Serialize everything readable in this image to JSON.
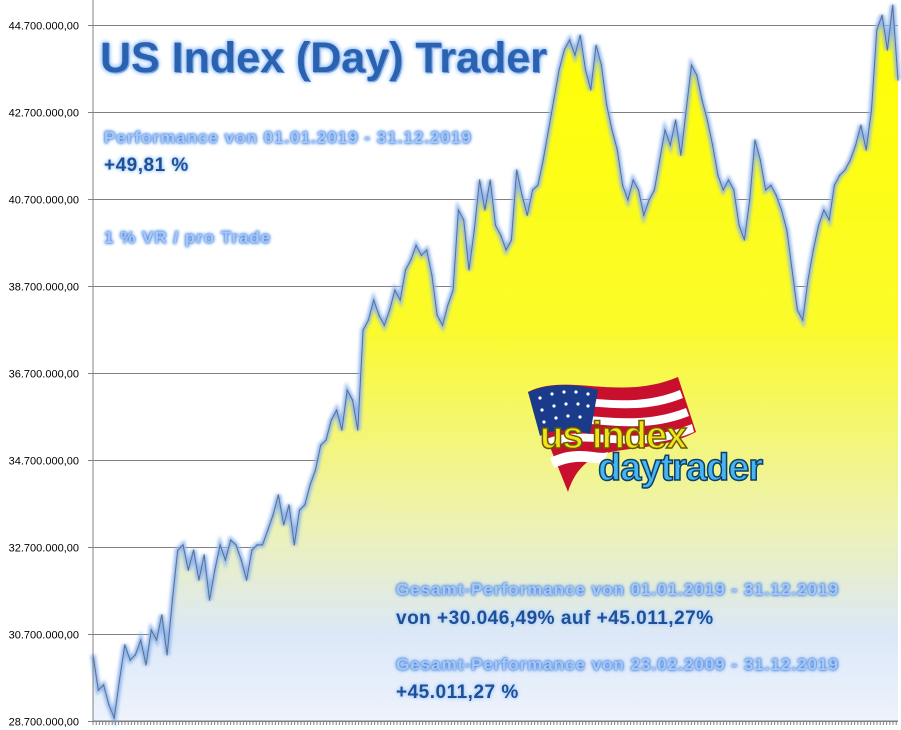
{
  "chart_data": {
    "type": "area",
    "title": "US Index (Day) Trader",
    "xlabel": "",
    "ylabel": "",
    "ylim": [
      28700000,
      45280000
    ],
    "yticks": [
      28700000,
      30700000,
      32700000,
      34700000,
      36700000,
      38700000,
      40700000,
      42700000,
      44700000
    ],
    "ytick_labels": [
      "28.700.000,00",
      "30.700.000,00",
      "32.700.000,00",
      "34.700.000,00",
      "36.700.000,00",
      "38.700.000,00",
      "40.700.000,00",
      "42.700.000,00",
      "44.700.000,00"
    ],
    "grid": "horizontal",
    "colors": {
      "line": "#7fa8e0",
      "fill_top": "#ffff00",
      "fill_bottom": "#e4ecfa",
      "grid": "#808080"
    },
    "values": [
      30220000,
      29410000,
      29530000,
      29070000,
      28770000,
      29640000,
      30450000,
      30100000,
      30220000,
      30560000,
      29990000,
      30790000,
      30560000,
      31140000,
      30220000,
      31480000,
      32630000,
      32750000,
      32170000,
      32630000,
      31940000,
      32520000,
      31480000,
      32170000,
      32750000,
      32400000,
      32860000,
      32750000,
      32400000,
      31940000,
      32630000,
      32750000,
      32750000,
      33090000,
      33440000,
      33900000,
      33210000,
      33670000,
      32750000,
      33550000,
      33670000,
      34130000,
      34470000,
      35040000,
      35160000,
      35620000,
      35850000,
      35390000,
      36310000,
      36080000,
      35390000,
      37690000,
      37920000,
      38380000,
      38030000,
      37800000,
      38150000,
      38610000,
      38380000,
      39070000,
      39300000,
      39640000,
      39410000,
      39530000,
      38950000,
      38030000,
      37800000,
      38260000,
      38610000,
      40450000,
      40220000,
      39070000,
      39990000,
      41140000,
      40450000,
      41140000,
      40100000,
      39870000,
      39530000,
      39760000,
      41370000,
      40790000,
      40330000,
      40910000,
      41020000,
      41600000,
      42290000,
      42980000,
      43670000,
      44130000,
      44360000,
      44010000,
      44470000,
      43670000,
      43210000,
      44240000,
      43780000,
      42860000,
      42290000,
      41830000,
      41020000,
      40680000,
      41140000,
      40910000,
      40330000,
      40680000,
      40910000,
      41600000,
      42290000,
      41940000,
      42520000,
      41710000,
      42750000,
      43780000,
      43550000,
      42980000,
      42520000,
      41940000,
      41250000,
      40910000,
      41140000,
      40910000,
      40100000,
      39760000,
      40680000,
      42060000,
      41600000,
      40910000,
      41020000,
      40790000,
      40450000,
      39990000,
      39070000,
      38150000,
      37920000,
      38840000,
      39530000,
      40100000,
      40450000,
      40220000,
      41020000,
      41250000,
      41370000,
      41600000,
      41940000,
      42400000,
      41830000,
      42750000,
      44590000,
      44930000,
      44130000,
      45160000,
      43440000
    ]
  },
  "overlay": {
    "title": "US Index (Day) Trader",
    "perf_label": "Performance  von  01.01.2019 - 31.12.2019",
    "perf_value": "+49,81 %",
    "risk_label": "1 % VR / pro Trade",
    "total1_label": "Gesamt-Performance  von  01.01.2019 - 31.12.2019",
    "total1_value": "von +30.046,49% auf  +45.011,27%",
    "total2_label": "Gesamt-Performance  von  23.02.2009 - 31.12.2019",
    "total2_value": "+45.011,27 %"
  },
  "logo": {
    "line1": "us index",
    "line2": "daytrader",
    "flag": "usa-flag"
  }
}
